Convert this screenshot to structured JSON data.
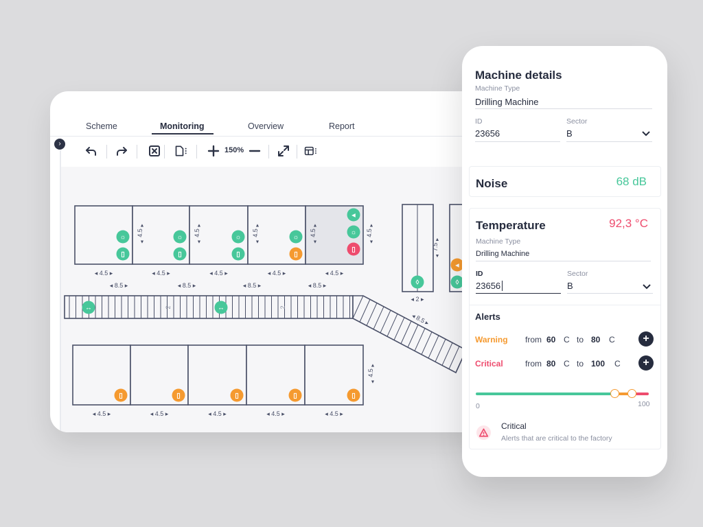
{
  "tabs": [
    "Scheme",
    "Monitoring",
    "Overview",
    "Report"
  ],
  "toolbar": {
    "zoom": "150%"
  },
  "canvas": {
    "row_height_label": "4.5",
    "row_width_label": "4.5",
    "conveyor_spacing_label": "8.5",
    "conveyor_width_label": "2",
    "tall_unit_height_label": "7.5",
    "tall_unit_width_label": "2",
    "diagonal_label": "8.5",
    "colors": {
      "green": "#47c79a",
      "orange": "#f59a30",
      "red": "#ee4c6e",
      "stroke": "#4a5068"
    }
  },
  "machine": {
    "title": "Machine details",
    "type_label": "Machine Type",
    "type_value": "Drilling Machine",
    "id_label": "ID",
    "id_value": "23656",
    "sector_label": "Sector",
    "sector_value": "B"
  },
  "noise": {
    "title": "Noise",
    "value": "68 dB",
    "color": "#47c79a"
  },
  "temperature": {
    "title": "Temperature",
    "value": "92,3 °C",
    "color": "#ee4c6e",
    "type_label": "Machine Type",
    "type_value": "Drilling Machine",
    "id_label": "ID",
    "id_value": "23656",
    "sector_label": "Sector",
    "sector_value": "B"
  },
  "alerts": {
    "title": "Alerts",
    "warning": {
      "label": "Warning",
      "from_label": "from",
      "from": "60",
      "unit": "C",
      "to_label": "to",
      "to": "80",
      "color": "#f59a30"
    },
    "critical": {
      "label": "Critical",
      "from_label": "from",
      "from": "80",
      "unit": "C",
      "to_label": "to",
      "to": "100",
      "color": "#ee4c6e"
    },
    "slider": {
      "min_label": "0",
      "max_label": "100",
      "warning_at": 80,
      "critical_at": 90
    },
    "info_title": "Critical",
    "info_text": "Alerts that are critical to the factory"
  }
}
